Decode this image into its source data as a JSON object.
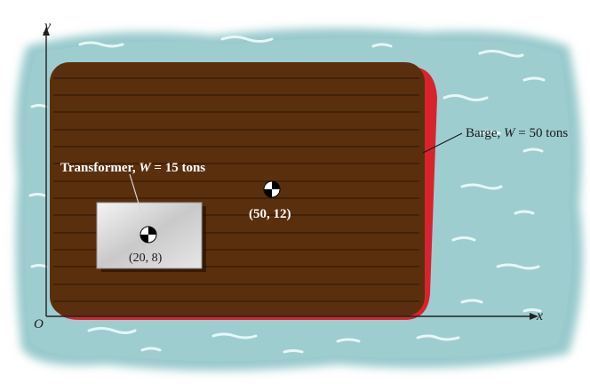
{
  "axes": {
    "y_label": "y",
    "x_label": "x",
    "origin_label": "O"
  },
  "barge": {
    "prefix": "Barge, ",
    "weight_symbol": "W",
    "weight_value": " = 50 tons",
    "centroid_label": "(50, 12)"
  },
  "transformer": {
    "prefix": "Transformer, ",
    "weight_symbol": "W",
    "weight_value": " = 15 tons",
    "centroid_label": "(20, 8)"
  },
  "colors": {
    "water": "#98c9cc",
    "deck": "#5a2f0d",
    "hull_red": "#d8232f",
    "transformer": "#cfcfcf"
  }
}
